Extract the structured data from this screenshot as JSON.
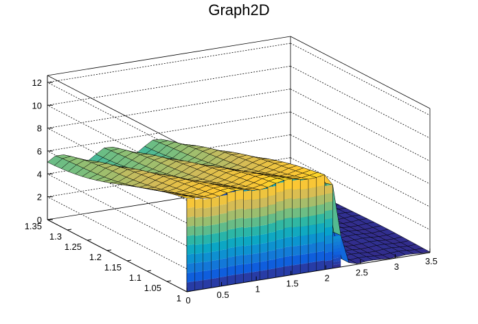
{
  "chart_data": {
    "type": "surface",
    "title": "Graph2D",
    "xlabel": "",
    "ylabel": "",
    "zlabel": "",
    "xlim": [
      0,
      3.5
    ],
    "ylim": [
      1,
      1.35
    ],
    "zlim": [
      0,
      12.6
    ],
    "x_ticks": [
      "0",
      "0.5",
      "1",
      "1.5",
      "2",
      "2.5",
      "3",
      "3.5"
    ],
    "y_ticks": [
      "1",
      "1.05",
      "1.1",
      "1.15",
      "1.2",
      "1.25",
      "1.3",
      "1.35"
    ],
    "z_ticks": [
      "0",
      "2",
      "4",
      "6",
      "8",
      "10",
      "12"
    ],
    "grid": true,
    "colormap": "parula",
    "colors": [
      "#352a87",
      "#0f5cdd",
      "#1481d6",
      "#06a4ca",
      "#2eb7a4",
      "#87bf77",
      "#d1bb59",
      "#fec832",
      "#f9fb0e"
    ],
    "surface": {
      "z_low_region": 0.1,
      "z_plateau_front": 8.0,
      "z_plateau_back": 5.0,
      "z_plateau_peak": 8.3,
      "plateau_x_range": [
        0,
        2.0
      ],
      "dip_x": 2.15,
      "dip_z": 1.0,
      "x_steps": 30,
      "y_steps": 20
    }
  }
}
